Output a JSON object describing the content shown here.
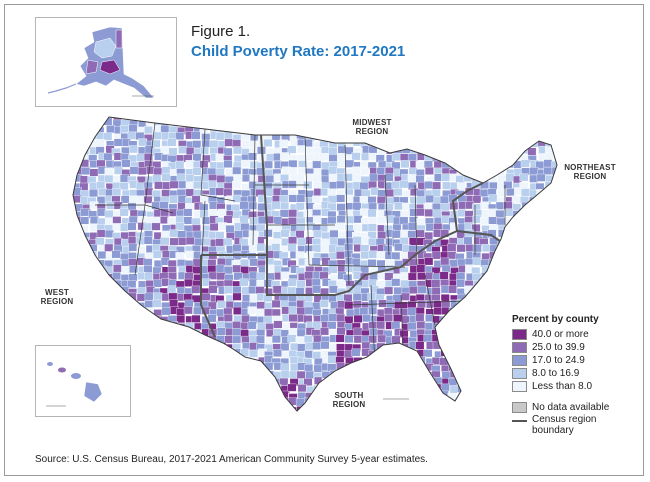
{
  "figure": {
    "label": "Figure 1.",
    "title": "Child Poverty Rate: 2017-2021",
    "title_color": "#1f78c1"
  },
  "regions": {
    "midwest": [
      "MIDWEST",
      "REGION"
    ],
    "northeast": [
      "NORTHEAST",
      "REGION"
    ],
    "west": [
      "WEST",
      "REGION"
    ],
    "south": [
      "SOUTH",
      "REGION"
    ]
  },
  "legend": {
    "title": "Percent by county",
    "classes": [
      {
        "label": "40.0 or more",
        "color": "#7b2a8a"
      },
      {
        "label": "25.0 to 39.9",
        "color": "#8f6bb5"
      },
      {
        "label": "17.0 to 24.9",
        "color": "#8c9bd4"
      },
      {
        "label": "8.0 to 16.9",
        "color": "#b9cfee"
      },
      {
        "label": "Less than 8.0",
        "color": "#eef5fc"
      }
    ],
    "no_data": {
      "label": "No data available",
      "color": "#c8c8c8"
    },
    "boundary": {
      "label": [
        "Census region",
        "boundary"
      ],
      "color": "#555555"
    }
  },
  "source": "Source: U.S. Census Bureau, 2017-2021 American Community Survey 5-year estimates.",
  "palette": {
    "high": "#7b2a8a",
    "mid_high": "#8f6bb5",
    "mid": "#8c9bd4",
    "low": "#b9cfee",
    "very_low": "#eef5fc",
    "county_line": "#ffffff",
    "state_line": "#3a3a3a"
  }
}
